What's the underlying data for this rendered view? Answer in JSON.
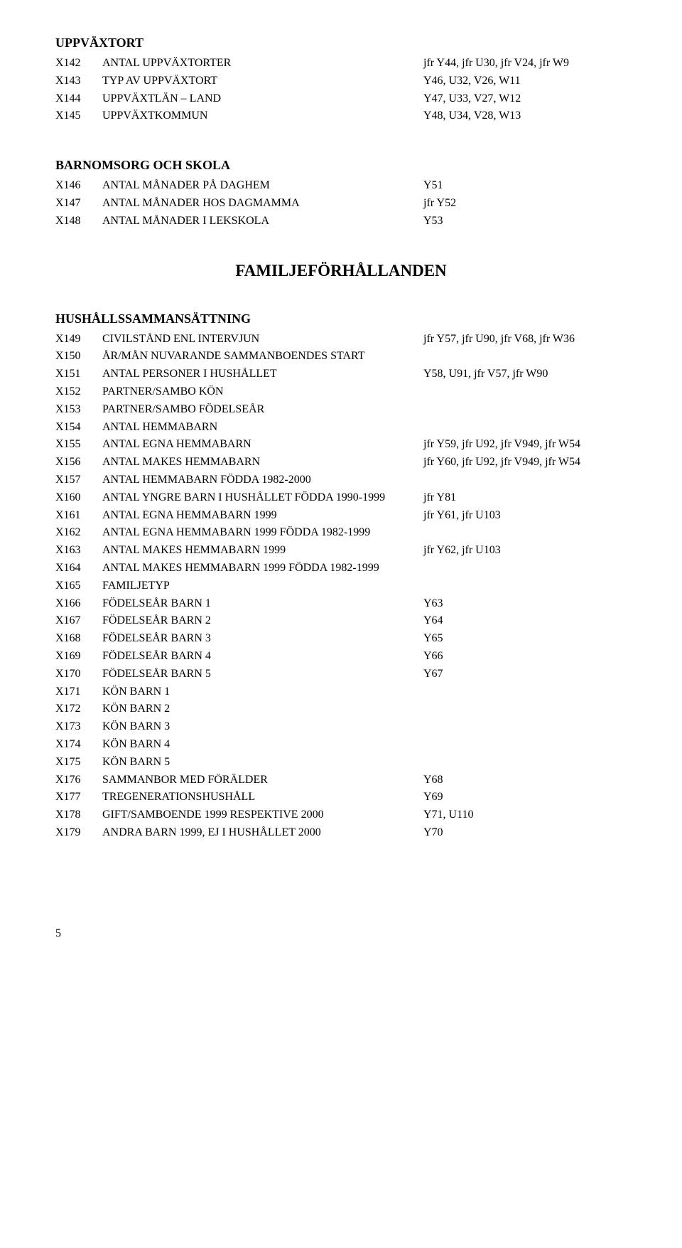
{
  "section1_title": "UPPVÄXTORT",
  "section1": [
    {
      "code": "X142",
      "label": "ANTAL UPPVÄXTORTER",
      "ref": "jfr Y44, jfr U30, jfr V24, jfr W9"
    },
    {
      "code": "X143",
      "label": "TYP AV UPPVÄXTORT",
      "ref": "Y46, U32, V26, W11"
    },
    {
      "code": "X144",
      "label": "UPPVÄXTLÄN – LAND",
      "ref": "Y47, U33, V27, W12"
    },
    {
      "code": "X145",
      "label": "UPPVÄXTKOMMUN",
      "ref": "Y48, U34, V28, W13"
    }
  ],
  "section2_title": "BARNOMSORG OCH SKOLA",
  "section2": [
    {
      "code": "X146",
      "label": "ANTAL MÅNADER PÅ DAGHEM",
      "ref": "Y51"
    },
    {
      "code": "X147",
      "label": "ANTAL MÅNADER HOS DAGMAMMA",
      "ref": "jfr Y52"
    },
    {
      "code": "X148",
      "label": "ANTAL MÅNADER I LEKSKOLA",
      "ref": "Y53"
    }
  ],
  "big_title": "FAMILJEFÖRHÅLLANDEN",
  "section3_title": "HUSHÅLLSSAMMANSÄTTNING",
  "section3": [
    {
      "code": "X149",
      "label": "CIVILSTÅND ENL INTERVJUN",
      "ref": "jfr Y57, jfr U90, jfr V68, jfr W36"
    },
    {
      "code": "X150",
      "label": "ÅR/MÅN NUVARANDE SAMMANBOENDES START",
      "ref": ""
    },
    {
      "code": "X151",
      "label": "ANTAL PERSONER I HUSHÅLLET",
      "ref": "Y58, U91, jfr V57, jfr W90"
    },
    {
      "code": "X152",
      "label": "PARTNER/SAMBO KÖN",
      "ref": ""
    },
    {
      "code": "X153",
      "label": "PARTNER/SAMBO FÖDELSEÅR",
      "ref": ""
    },
    {
      "code": "X154",
      "label": "ANTAL HEMMABARN",
      "ref": ""
    },
    {
      "code": "X155",
      "label": "ANTAL EGNA HEMMABARN",
      "ref": "jfr Y59, jfr U92, jfr V949, jfr W54"
    },
    {
      "code": "X156",
      "label": "ANTAL MAKES HEMMABARN",
      "ref": "jfr Y60, jfr U92, jfr V949, jfr W54"
    },
    {
      "code": "X157",
      "label": "ANTAL HEMMABARN FÖDDA 1982-2000",
      "ref": ""
    },
    {
      "code": "X160",
      "label": "ANTAL YNGRE BARN I HUSHÅLLET FÖDDA 1990-1999",
      "ref": "jfr Y81"
    },
    {
      "code": "X161",
      "label": "ANTAL EGNA HEMMABARN 1999",
      "ref": "jfr Y61, jfr U103"
    },
    {
      "code": "X162",
      "label": "ANTAL EGNA HEMMABARN 1999 FÖDDA 1982-1999",
      "ref": ""
    },
    {
      "code": "X163",
      "label": "ANTAL MAKES HEMMABARN 1999",
      "ref": "jfr Y62, jfr U103"
    },
    {
      "code": "X164",
      "label": "ANTAL MAKES HEMMABARN 1999 FÖDDA 1982-1999",
      "ref": ""
    },
    {
      "code": "X165",
      "label": "FAMILJETYP",
      "ref": ""
    },
    {
      "code": "X166",
      "label": "FÖDELSEÅR BARN 1",
      "ref": "Y63"
    },
    {
      "code": "X167",
      "label": "FÖDELSEÅR BARN 2",
      "ref": "Y64"
    },
    {
      "code": "X168",
      "label": "FÖDELSEÅR BARN 3",
      "ref": "Y65"
    },
    {
      "code": "X169",
      "label": "FÖDELSEÅR BARN 4",
      "ref": "Y66"
    },
    {
      "code": "X170",
      "label": "FÖDELSEÅR BARN 5",
      "ref": "Y67"
    },
    {
      "code": "X171",
      "label": "KÖN BARN 1",
      "ref": ""
    },
    {
      "code": "X172",
      "label": "KÖN BARN 2",
      "ref": ""
    },
    {
      "code": "X173",
      "label": "KÖN BARN 3",
      "ref": ""
    },
    {
      "code": "X174",
      "label": "KÖN BARN 4",
      "ref": ""
    },
    {
      "code": "X175",
      "label": "KÖN BARN 5",
      "ref": ""
    },
    {
      "code": "X176",
      "label": "SAMMANBOR MED FÖRÄLDER",
      "ref": "Y68"
    },
    {
      "code": "X177",
      "label": "TREGENERATIONSHUSHÅLL",
      "ref": "Y69"
    },
    {
      "code": "X178",
      "label": "GIFT/SAMBOENDE 1999 RESPEKTIVE 2000",
      "ref": "Y71, U110"
    },
    {
      "code": "X179",
      "label": "ANDRA BARN 1999, EJ I HUSHÅLLET 2000",
      "ref": "Y70"
    }
  ],
  "page_number": "5"
}
